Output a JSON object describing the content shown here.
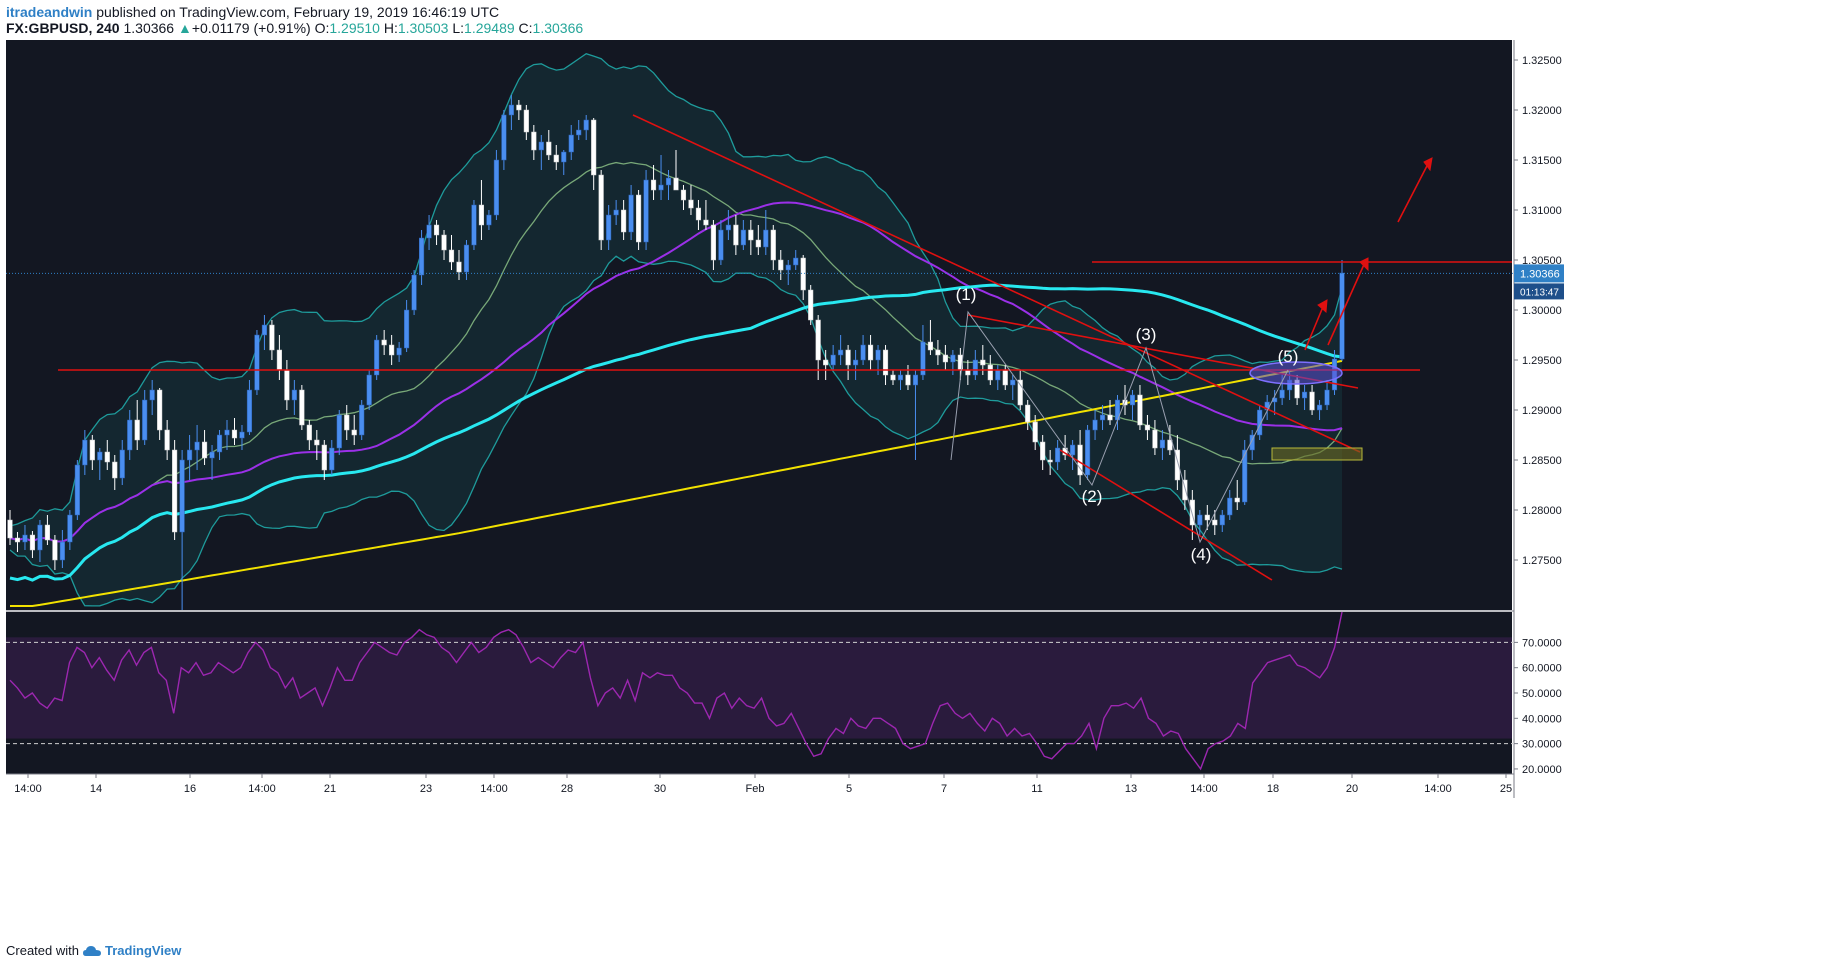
{
  "header": {
    "author": "itradeandwin",
    "published": "published on TradingView.com, February 19, 2019 16:46:19 UTC",
    "symbol": "FX:GBPUSD, 240",
    "price": "1.30366",
    "change": "+0.01179 (+0.91%)",
    "open_label": "O:",
    "open": "1.29510",
    "high_label": "H:",
    "high": "1.30503",
    "low_label": "L:",
    "low": "1.29489",
    "close_label": "C:",
    "close": "1.30366"
  },
  "footer": {
    "created_with": "Created with",
    "brand": "TradingView"
  },
  "colors": {
    "background": "#131722",
    "rsi_fill": "#2a1b3d",
    "bull": "#4a8ef0",
    "bear": "#ffffff",
    "bollinger": "#1e9b9b",
    "ema_short": "#78a878",
    "ema_mid": "#9b30e8",
    "ema_long": "#28e8f0",
    "ema_200": "#f2e200",
    "annotation": "#e01010",
    "rsi_line": "#9c27b0"
  },
  "chart_data": {
    "type": "candlestick",
    "title": "",
    "ylim": [
      1.27,
      1.327
    ],
    "y_ticks": [
      "1.32500",
      "1.32000",
      "1.31500",
      "1.31000",
      "1.30500",
      "1.30000",
      "1.29500",
      "1.29000",
      "1.28500",
      "1.28000",
      "1.27500"
    ],
    "x_ticks": [
      "14:00",
      "14",
      "16",
      "14:00",
      "21",
      "23",
      "14:00",
      "28",
      "30",
      "Feb",
      "5",
      "7",
      "11",
      "13",
      "14:00",
      "18",
      "20",
      "14:00",
      "25"
    ],
    "last_price_label": "1.30366",
    "countdown_label": "01:13:47",
    "candles": [
      [
        1.279,
        1.28,
        1.2765,
        1.2772
      ],
      [
        1.2772,
        1.2778,
        1.2758,
        1.2768
      ],
      [
        1.2768,
        1.2785,
        1.276,
        1.2775
      ],
      [
        1.2775,
        1.2779,
        1.2752,
        1.276
      ],
      [
        1.276,
        1.279,
        1.2748,
        1.2785
      ],
      [
        1.2785,
        1.2795,
        1.2765,
        1.277
      ],
      [
        1.277,
        1.2775,
        1.274,
        1.275
      ],
      [
        1.275,
        1.278,
        1.2742,
        1.2768
      ],
      [
        1.2768,
        1.28,
        1.276,
        1.2795
      ],
      [
        1.2795,
        1.285,
        1.279,
        1.2845
      ],
      [
        1.2845,
        1.288,
        1.2835,
        1.287
      ],
      [
        1.287,
        1.2875,
        1.284,
        1.285
      ],
      [
        1.285,
        1.2862,
        1.283,
        1.2858
      ],
      [
        1.2858,
        1.287,
        1.284,
        1.2848
      ],
      [
        1.2848,
        1.2855,
        1.282,
        1.2832
      ],
      [
        1.2832,
        1.287,
        1.2825,
        1.286
      ],
      [
        1.286,
        1.29,
        1.285,
        1.289
      ],
      [
        1.289,
        1.291,
        1.286,
        1.287
      ],
      [
        1.287,
        1.292,
        1.2865,
        1.291
      ],
      [
        1.291,
        1.293,
        1.2895,
        1.292
      ],
      [
        1.292,
        1.2922,
        1.287,
        1.288
      ],
      [
        1.288,
        1.289,
        1.285,
        1.286
      ],
      [
        1.286,
        1.287,
        1.277,
        1.2778
      ],
      [
        1.2778,
        1.286,
        1.27,
        1.285
      ],
      [
        1.285,
        1.2875,
        1.283,
        1.286
      ],
      [
        1.286,
        1.2885,
        1.284,
        1.2868
      ],
      [
        1.2868,
        1.288,
        1.2845,
        1.2852
      ],
      [
        1.2852,
        1.2865,
        1.283,
        1.2858
      ],
      [
        1.2858,
        1.288,
        1.285,
        1.2875
      ],
      [
        1.2875,
        1.289,
        1.286,
        1.288
      ],
      [
        1.288,
        1.2892,
        1.2865,
        1.2872
      ],
      [
        1.2872,
        1.2885,
        1.286,
        1.2878
      ],
      [
        1.2878,
        1.293,
        1.2875,
        1.292
      ],
      [
        1.292,
        1.298,
        1.2915,
        1.2975
      ],
      [
        1.2975,
        1.2995,
        1.296,
        1.2985
      ],
      [
        1.2985,
        1.299,
        1.295,
        1.296
      ],
      [
        1.296,
        1.2975,
        1.293,
        1.294
      ],
      [
        1.294,
        1.295,
        1.29,
        1.291
      ],
      [
        1.291,
        1.293,
        1.2895,
        1.292
      ],
      [
        1.292,
        1.2925,
        1.288,
        1.2885
      ],
      [
        1.2885,
        1.289,
        1.286,
        1.287
      ],
      [
        1.287,
        1.288,
        1.285,
        1.2865
      ],
      [
        1.2865,
        1.287,
        1.283,
        1.284
      ],
      [
        1.284,
        1.287,
        1.2835,
        1.2862
      ],
      [
        1.2862,
        1.29,
        1.2855,
        1.2895
      ],
      [
        1.2895,
        1.2905,
        1.287,
        1.288
      ],
      [
        1.288,
        1.2895,
        1.2865,
        1.2875
      ],
      [
        1.2875,
        1.291,
        1.287,
        1.2905
      ],
      [
        1.2905,
        1.294,
        1.29,
        1.2935
      ],
      [
        1.2935,
        1.2975,
        1.293,
        1.297
      ],
      [
        1.297,
        1.298,
        1.2955,
        1.2965
      ],
      [
        1.2965,
        1.2975,
        1.2945,
        1.2955
      ],
      [
        1.2955,
        1.2968,
        1.2948,
        1.2962
      ],
      [
        1.2962,
        1.301,
        1.2958,
        1.3
      ],
      [
        1.3,
        1.304,
        1.2995,
        1.3035
      ],
      [
        1.3035,
        1.308,
        1.3025,
        1.3072
      ],
      [
        1.3072,
        1.3095,
        1.306,
        1.3085
      ],
      [
        1.3085,
        1.309,
        1.3065,
        1.3075
      ],
      [
        1.3075,
        1.308,
        1.305,
        1.306
      ],
      [
        1.306,
        1.3075,
        1.304,
        1.3048
      ],
      [
        1.3048,
        1.306,
        1.303,
        1.3038
      ],
      [
        1.3038,
        1.307,
        1.303,
        1.3065
      ],
      [
        1.3065,
        1.311,
        1.306,
        1.3105
      ],
      [
        1.3105,
        1.313,
        1.307,
        1.3085
      ],
      [
        1.3085,
        1.31,
        1.308,
        1.3095
      ],
      [
        1.3095,
        1.316,
        1.309,
        1.315
      ],
      [
        1.315,
        1.32,
        1.314,
        1.3195
      ],
      [
        1.3195,
        1.3215,
        1.318,
        1.3205
      ],
      [
        1.3205,
        1.321,
        1.319,
        1.32
      ],
      [
        1.32,
        1.3205,
        1.317,
        1.3178
      ],
      [
        1.3178,
        1.3185,
        1.315,
        1.316
      ],
      [
        1.316,
        1.3175,
        1.314,
        1.3168
      ],
      [
        1.3168,
        1.318,
        1.315,
        1.3155
      ],
      [
        1.3155,
        1.3165,
        1.314,
        1.3148
      ],
      [
        1.3148,
        1.316,
        1.3135,
        1.3158
      ],
      [
        1.3158,
        1.3185,
        1.315,
        1.3175
      ],
      [
        1.3175,
        1.319,
        1.317,
        1.318
      ],
      [
        1.318,
        1.3195,
        1.317,
        1.319
      ],
      [
        1.319,
        1.3192,
        1.312,
        1.3135
      ],
      [
        1.3135,
        1.314,
        1.306,
        1.307
      ],
      [
        1.307,
        1.3105,
        1.306,
        1.3095
      ],
      [
        1.3095,
        1.311,
        1.3085,
        1.31
      ],
      [
        1.31,
        1.311,
        1.307,
        1.3078
      ],
      [
        1.3078,
        1.3125,
        1.307,
        1.3115
      ],
      [
        1.3115,
        1.312,
        1.306,
        1.3068
      ],
      [
        1.3068,
        1.314,
        1.306,
        1.313
      ],
      [
        1.313,
        1.3145,
        1.311,
        1.312
      ],
      [
        1.312,
        1.3155,
        1.311,
        1.3125
      ],
      [
        1.3125,
        1.314,
        1.311,
        1.3132
      ],
      [
        1.3132,
        1.316,
        1.312,
        1.312
      ],
      [
        1.312,
        1.3125,
        1.31,
        1.311
      ],
      [
        1.311,
        1.3125,
        1.3095,
        1.3102
      ],
      [
        1.3102,
        1.311,
        1.308,
        1.309
      ],
      [
        1.309,
        1.311,
        1.308,
        1.3085
      ],
      [
        1.3085,
        1.309,
        1.304,
        1.305
      ],
      [
        1.305,
        1.309,
        1.3045,
        1.308
      ],
      [
        1.308,
        1.31,
        1.307,
        1.3085
      ],
      [
        1.3085,
        1.3095,
        1.3055,
        1.3065
      ],
      [
        1.3065,
        1.309,
        1.306,
        1.308
      ],
      [
        1.308,
        1.309,
        1.3055,
        1.307
      ],
      [
        1.307,
        1.3085,
        1.3055,
        1.3063
      ],
      [
        1.3063,
        1.31,
        1.3055,
        1.308
      ],
      [
        1.308,
        1.3085,
        1.304,
        1.305
      ],
      [
        1.305,
        1.306,
        1.303,
        1.304
      ],
      [
        1.304,
        1.305,
        1.3025,
        1.3045
      ],
      [
        1.3045,
        1.306,
        1.304,
        1.3052
      ],
      [
        1.3052,
        1.3055,
        1.301,
        1.302
      ],
      [
        1.302,
        1.3025,
        1.2985,
        1.299
      ],
      [
        1.299,
        1.2995,
        1.293,
        1.295
      ],
      [
        1.295,
        1.296,
        1.293,
        1.2945
      ],
      [
        1.2945,
        1.2965,
        1.294,
        1.2955
      ],
      [
        1.2955,
        1.2975,
        1.2945,
        1.296
      ],
      [
        1.296,
        1.2965,
        1.293,
        1.2945
      ],
      [
        1.2945,
        1.296,
        1.293,
        1.295
      ],
      [
        1.295,
        1.2975,
        1.2945,
        1.2965
      ],
      [
        1.2965,
        1.2975,
        1.294,
        1.295
      ],
      [
        1.295,
        1.2965,
        1.2935,
        1.296
      ],
      [
        1.296,
        1.2965,
        1.2925,
        1.2935
      ],
      [
        1.2935,
        1.294,
        1.2925,
        1.293
      ],
      [
        1.293,
        1.294,
        1.292,
        1.2935
      ],
      [
        1.2935,
        1.2945,
        1.292,
        1.2925
      ],
      [
        1.2925,
        1.294,
        1.285,
        1.2935
      ],
      [
        1.2935,
        1.2985,
        1.293,
        1.2968
      ],
      [
        1.2968,
        1.299,
        1.2955,
        1.296
      ],
      [
        1.296,
        1.297,
        1.2945,
        1.2955
      ],
      [
        1.2955,
        1.2965,
        1.294,
        1.2948
      ],
      [
        1.2948,
        1.296,
        1.2935,
        1.2955
      ],
      [
        1.2955,
        1.2962,
        1.293,
        1.294
      ],
      [
        1.294,
        1.295,
        1.2925,
        1.2935
      ],
      [
        1.2935,
        1.296,
        1.293,
        1.295
      ],
      [
        1.295,
        1.2965,
        1.2935,
        1.2945
      ],
      [
        1.2945,
        1.2955,
        1.2925,
        1.293
      ],
      [
        1.293,
        1.2945,
        1.292,
        1.294
      ],
      [
        1.294,
        1.2945,
        1.292,
        1.2925
      ],
      [
        1.2925,
        1.2935,
        1.291,
        1.293
      ],
      [
        1.293,
        1.294,
        1.29,
        1.2905
      ],
      [
        1.2905,
        1.291,
        1.288,
        1.2888
      ],
      [
        1.2888,
        1.2895,
        1.286,
        1.2868
      ],
      [
        1.2868,
        1.2875,
        1.284,
        1.285
      ],
      [
        1.285,
        1.286,
        1.2835,
        1.2848
      ],
      [
        1.2848,
        1.287,
        1.284,
        1.2862
      ],
      [
        1.2862,
        1.2875,
        1.285,
        1.2855
      ],
      [
        1.2855,
        1.287,
        1.284,
        1.2865
      ],
      [
        1.2865,
        1.288,
        1.2825,
        1.2835
      ],
      [
        1.2835,
        1.2885,
        1.283,
        1.288
      ],
      [
        1.288,
        1.29,
        1.287,
        1.289
      ],
      [
        1.289,
        1.2905,
        1.288,
        1.2895
      ],
      [
        1.2895,
        1.291,
        1.2885,
        1.289
      ],
      [
        1.289,
        1.2915,
        1.288,
        1.291
      ],
      [
        1.291,
        1.2925,
        1.2895,
        1.2905
      ],
      [
        1.2905,
        1.292,
        1.289,
        1.2915
      ],
      [
        1.2915,
        1.2925,
        1.288,
        1.2885
      ],
      [
        1.2885,
        1.2895,
        1.287,
        1.288
      ],
      [
        1.288,
        1.289,
        1.2855,
        1.2862
      ],
      [
        1.2862,
        1.288,
        1.285,
        1.287
      ],
      [
        1.287,
        1.2885,
        1.2855,
        1.286
      ],
      [
        1.286,
        1.2875,
        1.282,
        1.283
      ],
      [
        1.283,
        1.284,
        1.28,
        1.281
      ],
      [
        1.281,
        1.282,
        1.277,
        1.2785
      ],
      [
        1.2785,
        1.28,
        1.2775,
        1.2795
      ],
      [
        1.2795,
        1.2805,
        1.278,
        1.279
      ],
      [
        1.279,
        1.28,
        1.2775,
        1.2785
      ],
      [
        1.2785,
        1.28,
        1.2778,
        1.2795
      ],
      [
        1.2795,
        1.282,
        1.279,
        1.2812
      ],
      [
        1.2812,
        1.283,
        1.28,
        1.2808
      ],
      [
        1.2808,
        1.287,
        1.2805,
        1.286
      ],
      [
        1.286,
        1.288,
        1.285,
        1.2875
      ],
      [
        1.2875,
        1.2905,
        1.287,
        1.29
      ],
      [
        1.29,
        1.2915,
        1.289,
        1.2908
      ],
      [
        1.2908,
        1.292,
        1.2895,
        1.2912
      ],
      [
        1.2912,
        1.2935,
        1.2905,
        1.292
      ],
      [
        1.292,
        1.294,
        1.291,
        1.293
      ],
      [
        1.293,
        1.2935,
        1.2905,
        1.2912
      ],
      [
        1.2912,
        1.2925,
        1.29,
        1.2918
      ],
      [
        1.2918,
        1.2925,
        1.2895,
        1.29
      ],
      [
        1.29,
        1.291,
        1.289,
        1.2905
      ],
      [
        1.2905,
        1.293,
        1.29,
        1.292
      ],
      [
        1.292,
        1.296,
        1.2915,
        1.2951
      ],
      [
        1.2951,
        1.305,
        1.2949,
        1.3037
      ]
    ]
  },
  "annotations": {
    "wave1": "(1)",
    "wave2": "(2)",
    "wave3": "(3)",
    "wave4": "(4)",
    "wave5": "(5)"
  },
  "rsi": {
    "levels": [
      "70.0000",
      "60.0000",
      "50.0000",
      "40.0000",
      "30.0000",
      "20.0000"
    ],
    "values": [
      55,
      52,
      48,
      50,
      46,
      44,
      48,
      47,
      62,
      68,
      66,
      60,
      64,
      59,
      55,
      63,
      67,
      61,
      66,
      68,
      58,
      55,
      42,
      60,
      58,
      62,
      57,
      58,
      62,
      60,
      58,
      60,
      66,
      70,
      67,
      60,
      58,
      52,
      56,
      48,
      50,
      52,
      45,
      52,
      60,
      55,
      55,
      62,
      66,
      70,
      68,
      66,
      65,
      70,
      72,
      75,
      73,
      72,
      68,
      66,
      62,
      66,
      70,
      66,
      68,
      72,
      74,
      75,
      73,
      68,
      62,
      64,
      62,
      60,
      64,
      67,
      66,
      70,
      56,
      45,
      50,
      52,
      48,
      55,
      47,
      58,
      56,
      58,
      57,
      57,
      52,
      50,
      46,
      46,
      40,
      48,
      50,
      44,
      48,
      45,
      44,
      48,
      40,
      37,
      38,
      42,
      36,
      30,
      25,
      26,
      32,
      36,
      34,
      40,
      37,
      36,
      40,
      40,
      38,
      36,
      30,
      28,
      29,
      30,
      38,
      45,
      46,
      42,
      40,
      42,
      38,
      35,
      40,
      38,
      33,
      36,
      33,
      34,
      30,
      25,
      24,
      27,
      30,
      30,
      33,
      38,
      28,
      40,
      45,
      45,
      46,
      44,
      48,
      40,
      38,
      33,
      35,
      34,
      28,
      24,
      20,
      28,
      30,
      31,
      33,
      38,
      36,
      54,
      58,
      62,
      63,
      64,
      65,
      61,
      60,
      58,
      56,
      60,
      68,
      82
    ]
  }
}
